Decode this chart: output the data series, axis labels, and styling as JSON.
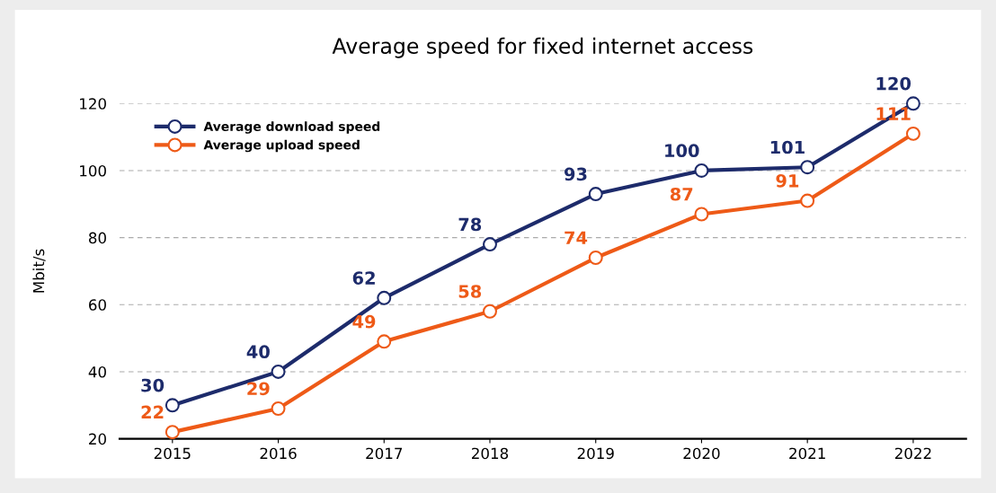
{
  "chart_data": {
    "type": "line",
    "title": "Average speed for fixed internet access",
    "ylabel": "Mbit/s",
    "categories": [
      "2015",
      "2016",
      "2017",
      "2018",
      "2019",
      "2020",
      "2021",
      "2022"
    ],
    "series": [
      {
        "name": "Average download speed",
        "color": "#1d2b6b",
        "values": [
          30,
          40,
          62,
          78,
          93,
          100,
          101,
          120
        ]
      },
      {
        "name": "Average upload speed",
        "color": "#ee5a17",
        "values": [
          22,
          29,
          49,
          58,
          74,
          87,
          91,
          111
        ]
      }
    ],
    "ylim": [
      20,
      120
    ],
    "yticks": [
      20,
      40,
      60,
      80,
      100,
      120
    ],
    "grid": "y",
    "legend": "top left",
    "marker": "circle",
    "line_style": "solid",
    "data_labels": true
  }
}
